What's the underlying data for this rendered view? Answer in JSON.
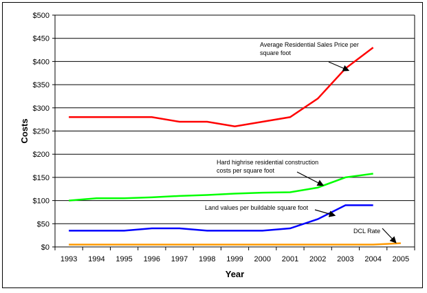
{
  "chart_data": {
    "type": "line",
    "xlabel": "Year",
    "ylabel": "Costs",
    "ylim": [
      0,
      500
    ],
    "yticks": [
      "$0",
      "$50",
      "$100",
      "$150",
      "$200",
      "$250",
      "$300",
      "$350",
      "$400",
      "$450",
      "$500"
    ],
    "categories": [
      "1993",
      "1994",
      "1995",
      "1996",
      "1997",
      "1998",
      "1999",
      "2000",
      "2001",
      "2002",
      "2003",
      "2004",
      "2005"
    ],
    "grid": true,
    "series": [
      {
        "name": "Average Residential Sales Price per square foot",
        "label_lines": [
          "Average Residential Sales Price per",
          "square foot"
        ],
        "color": "#ff0000",
        "values": [
          280,
          280,
          280,
          280,
          270,
          270,
          260,
          270,
          280,
          320,
          385,
          430,
          null
        ]
      },
      {
        "name": "Hard highrise residential construction costs per square foot",
        "label_lines": [
          "Hard highrise residential construction",
          "costs per square foot"
        ],
        "color": "#00ff00",
        "values": [
          100,
          105,
          105,
          107,
          110,
          112,
          115,
          117,
          118,
          128,
          150,
          158,
          null
        ]
      },
      {
        "name": "Land values per buildable square foot",
        "label_lines": [
          "Land values per buildable square foot"
        ],
        "color": "#0000ff",
        "values": [
          35,
          35,
          35,
          40,
          40,
          35,
          35,
          35,
          40,
          60,
          90,
          90,
          null
        ]
      },
      {
        "name": "DCL Rate",
        "label_lines": [
          "DCL Rate"
        ],
        "color": "#ff9900",
        "values": [
          5,
          5,
          5,
          5,
          5,
          5,
          5,
          5,
          5,
          5,
          5,
          5,
          8
        ]
      }
    ]
  }
}
